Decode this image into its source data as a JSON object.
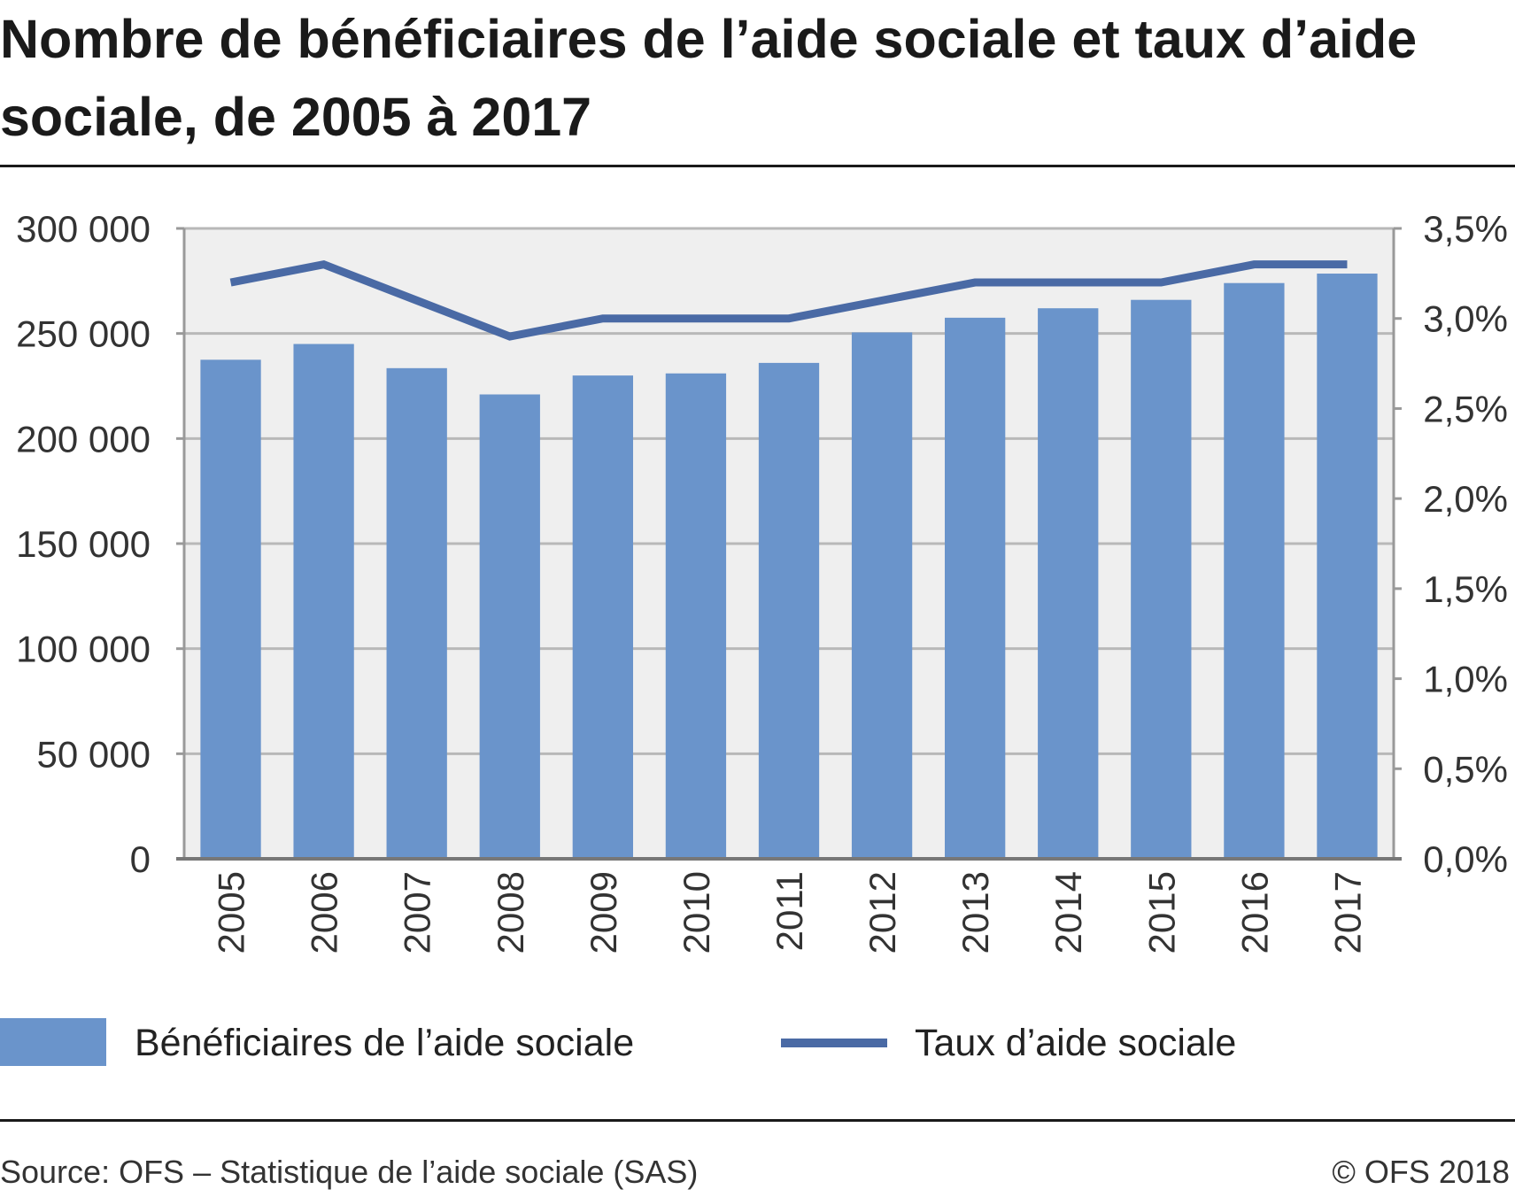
{
  "title": "Nombre de bénéficiaires de l’aide sociale et taux d’aide sociale, de 2005 à 2017",
  "legend": {
    "bars_label": "Bénéficiaires de l’aide sociale",
    "line_label": "Taux d’aide sociale"
  },
  "footer": {
    "source": "Source: OFS – Statistique de l’aide sociale (SAS)",
    "copyright": "© OFS 2018"
  },
  "colors": {
    "bar": "#6a94cb",
    "line": "#4a6aa5",
    "plot_background": "#efefef",
    "grid": "#b8b8b8",
    "axis": "#999999"
  },
  "chart_data": {
    "type": "bar",
    "categories": [
      "2005",
      "2006",
      "2007",
      "2008",
      "2009",
      "2010",
      "2011",
      "2012",
      "2013",
      "2014",
      "2015",
      "2016",
      "2017"
    ],
    "series": [
      {
        "name": "Bénéficiaires de l’aide sociale",
        "type": "bar",
        "axis": "left",
        "values": [
          237500,
          245000,
          233500,
          221000,
          230000,
          231000,
          236000,
          250500,
          257500,
          262000,
          266000,
          274000,
          278500
        ]
      },
      {
        "name": "Taux d’aide sociale",
        "type": "line",
        "axis": "right",
        "values": [
          3.2,
          3.3,
          3.1,
          2.9,
          3.0,
          3.0,
          3.0,
          3.1,
          3.2,
          3.2,
          3.2,
          3.3,
          3.3
        ]
      }
    ],
    "y_left": {
      "ylim": [
        0,
        300000
      ],
      "ticks": [
        0,
        50000,
        100000,
        150000,
        200000,
        250000,
        300000
      ],
      "tick_labels": [
        "0",
        "50 000",
        "100 000",
        "150 000",
        "200 000",
        "250 000",
        "300 000"
      ]
    },
    "y_right": {
      "ylim": [
        0,
        3.5
      ],
      "ticks": [
        0,
        0.5,
        1.0,
        1.5,
        2.0,
        2.5,
        3.0,
        3.5
      ],
      "tick_labels": [
        "0,0%",
        "0,5%",
        "1,0%",
        "1,5%",
        "2,0%",
        "2,5%",
        "3,0%",
        "3,5%"
      ]
    },
    "grid": true,
    "legend_position": "bottom"
  }
}
